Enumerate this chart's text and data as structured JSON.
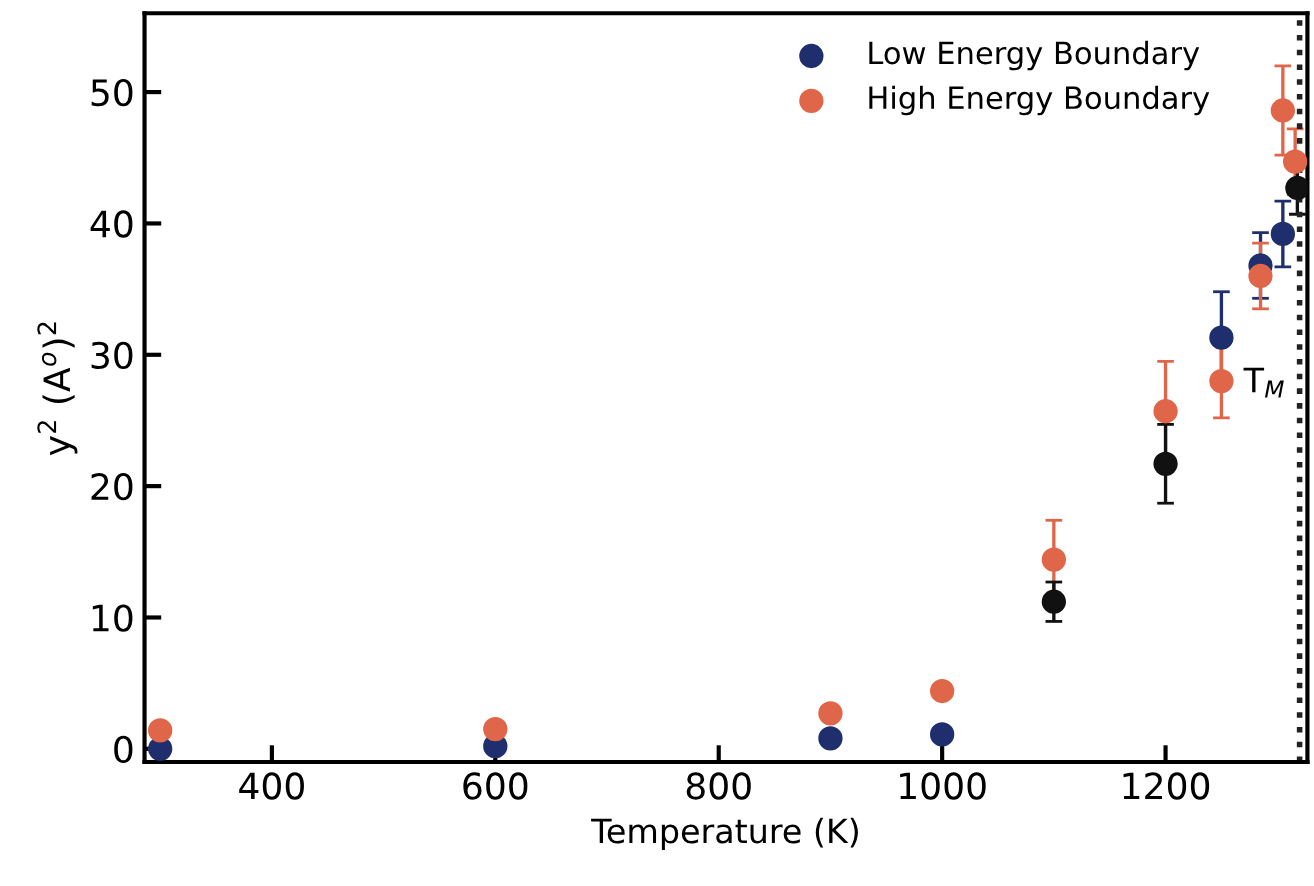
{
  "chart_data": {
    "type": "scatter",
    "xlabel": "Temperature (K)",
    "ylabel": "y$^{2}$ (A$^{o}$)$^{2}$",
    "xlim": [
      286,
      1327
    ],
    "xticks": [
      400,
      600,
      800,
      1000,
      1200
    ],
    "ylim": [
      -1,
      56
    ],
    "yticks": [
      0,
      10,
      20,
      30,
      40,
      50
    ],
    "grid": false,
    "legend": "top right",
    "marker": "circle",
    "series": [
      {
        "name": "Low Energy Boundary",
        "color": "#1f2f6e",
        "x": [
          300,
          600,
          900,
          1000,
          1250,
          1285,
          1305
        ],
        "values": [
          0.0,
          0.2,
          0.8,
          1.1,
          31.3,
          36.8,
          39.2
        ],
        "errors": [
          null,
          null,
          null,
          null,
          3.5,
          2.5,
          2.5
        ]
      },
      {
        "name": "High Energy Boundary",
        "color": "#e0664a",
        "x": [
          300,
          600,
          900,
          1000,
          1100,
          1200,
          1250,
          1285,
          1305,
          1316
        ],
        "values": [
          1.4,
          1.5,
          2.7,
          4.4,
          14.4,
          25.7,
          28.0,
          36.0,
          48.6,
          44.7
        ],
        "errors": [
          null,
          null,
          null,
          null,
          3.0,
          3.8,
          2.8,
          2.5,
          3.4,
          2.5
        ]
      },
      {
        "color": "#111111",
        "x": [
          1100,
          1200,
          1318
        ],
        "values": [
          11.2,
          21.7,
          42.7
        ],
        "errors": [
          1.5,
          3.0,
          2.0
        ]
      }
    ],
    "ref_lines": [
      {
        "axis": "x",
        "value": 1320,
        "color": "#222222",
        "line_style": "dotted"
      }
    ],
    "annotations": [
      {
        "text": "T$_{M}$",
        "x": 1250,
        "y": 28.0
      }
    ]
  }
}
